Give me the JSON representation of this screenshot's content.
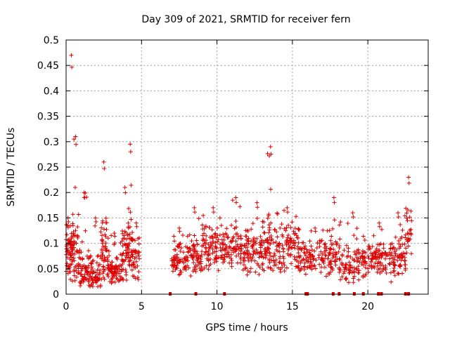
{
  "chart_data": {
    "type": "scatter",
    "title": "Day 309 of 2021, SRMTID for receiver fern",
    "xlabel": "GPS time / hours",
    "ylabel": "SRMTID / TECUs",
    "xlim": [
      0,
      24
    ],
    "ylim": [
      0,
      0.5
    ],
    "xticks": [
      0,
      5,
      10,
      15,
      20
    ],
    "yticks": [
      0,
      0.05,
      0.1,
      0.15,
      0.2,
      0.25,
      0.3,
      0.35,
      0.4,
      0.45,
      0.5
    ],
    "grid": true,
    "legend": "none",
    "marker": "plus",
    "color": "#dd0000",
    "gap_markers_x": [
      6.9,
      8.6,
      10.5,
      15.9,
      16.0,
      17.7,
      18.1,
      19.1,
      19.7,
      20.7,
      20.9,
      22.5,
      22.7
    ],
    "clusters": [
      {
        "x0": 0.0,
        "x1": 0.25,
        "base": 0.07,
        "spread": 0.06,
        "peak": 0.15,
        "count": 30
      },
      {
        "x0": 0.25,
        "x1": 0.45,
        "base": 0.08,
        "spread": 0.07,
        "peak": 0.47,
        "count": 35
      },
      {
        "x0": 0.45,
        "x1": 0.8,
        "base": 0.08,
        "spread": 0.07,
        "peak": 0.31,
        "count": 35
      },
      {
        "x0": 0.8,
        "x1": 1.6,
        "base": 0.05,
        "spread": 0.05,
        "peak": 0.2,
        "count": 70
      },
      {
        "x0": 1.6,
        "x1": 2.3,
        "base": 0.04,
        "spread": 0.04,
        "peak": 0.15,
        "count": 55
      },
      {
        "x0": 2.3,
        "x1": 2.7,
        "base": 0.09,
        "spread": 0.07,
        "peak": 0.26,
        "count": 45
      },
      {
        "x0": 2.7,
        "x1": 3.7,
        "base": 0.05,
        "spread": 0.04,
        "peak": 0.12,
        "count": 80
      },
      {
        "x0": 3.7,
        "x1": 4.1,
        "base": 0.08,
        "spread": 0.06,
        "peak": 0.21,
        "count": 40
      },
      {
        "x0": 4.1,
        "x1": 4.4,
        "base": 0.1,
        "spread": 0.07,
        "peak": 0.295,
        "count": 35
      },
      {
        "x0": 4.4,
        "x1": 4.9,
        "base": 0.07,
        "spread": 0.05,
        "peak": 0.14,
        "count": 35
      },
      {
        "x0": 7.0,
        "x1": 8.0,
        "base": 0.07,
        "spread": 0.04,
        "peak": 0.13,
        "count": 70
      },
      {
        "x0": 8.0,
        "x1": 9.0,
        "base": 0.07,
        "spread": 0.05,
        "peak": 0.17,
        "count": 70
      },
      {
        "x0": 9.0,
        "x1": 10.5,
        "base": 0.09,
        "spread": 0.05,
        "peak": 0.17,
        "count": 100
      },
      {
        "x0": 10.5,
        "x1": 12.0,
        "base": 0.09,
        "spread": 0.05,
        "peak": 0.19,
        "count": 100
      },
      {
        "x0": 12.0,
        "x1": 13.3,
        "base": 0.08,
        "spread": 0.05,
        "peak": 0.18,
        "count": 90
      },
      {
        "x0": 13.3,
        "x1": 13.8,
        "base": 0.1,
        "spread": 0.07,
        "peak": 0.29,
        "count": 45
      },
      {
        "x0": 13.8,
        "x1": 15.5,
        "base": 0.09,
        "spread": 0.05,
        "peak": 0.17,
        "count": 110
      },
      {
        "x0": 15.5,
        "x1": 17.5,
        "base": 0.07,
        "spread": 0.04,
        "peak": 0.13,
        "count": 110
      },
      {
        "x0": 17.5,
        "x1": 18.0,
        "base": 0.08,
        "spread": 0.05,
        "peak": 0.19,
        "count": 35
      },
      {
        "x0": 18.0,
        "x1": 20.0,
        "base": 0.06,
        "spread": 0.04,
        "peak": 0.16,
        "count": 110
      },
      {
        "x0": 20.0,
        "x1": 21.5,
        "base": 0.07,
        "spread": 0.04,
        "peak": 0.14,
        "count": 90
      },
      {
        "x0": 21.5,
        "x1": 22.5,
        "base": 0.07,
        "spread": 0.05,
        "peak": 0.16,
        "count": 70
      },
      {
        "x0": 22.5,
        "x1": 22.9,
        "base": 0.12,
        "spread": 0.06,
        "peak": 0.23,
        "count": 25
      }
    ]
  }
}
